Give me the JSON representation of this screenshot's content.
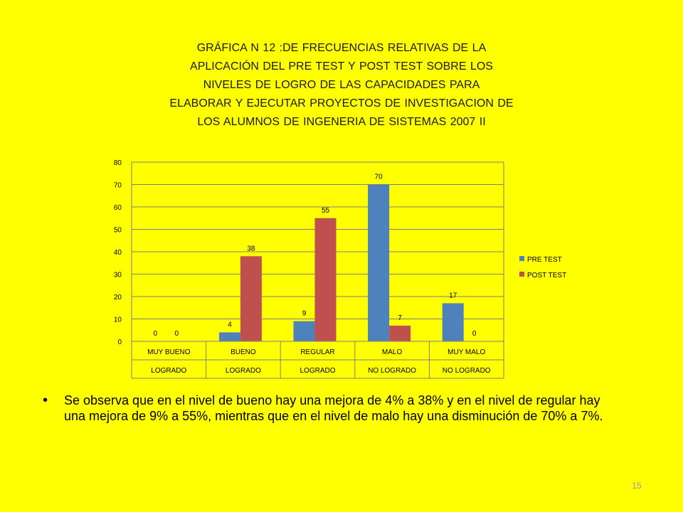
{
  "slide": {
    "page_number": "15",
    "bullet_text": "Se  observa que  en  el nivel de  bueno hay una mejora  de 4% a 38%    y en el nivel de regular hay  una mejora de 9% a 55%, mientras que en el nivel de  malo hay una disminución  de 70% a  7%."
  },
  "chart_data": {
    "type": "bar",
    "title": "GRÁFICA    N  12 :DE FRECUENCIAS RELATIVAS  DE LA\nAPLICACIÓN  DEL PRE TEST  Y POST TEST  SOBRE    LOS\nNIVELES    DE  LOGRO DE LAS CAPACIDADES   PARA\nELABORAR  Y EJECUTAR   PROYECTOS  DE  INVESTIGACION  DE\nLOS ALUMNOS  DE  INGENERIA  DE  SISTEMAS 2007 II",
    "categories": [
      "MUY BUENO",
      "BUENO",
      "REGULAR",
      "MALO",
      "MUY MALO"
    ],
    "subcategories": [
      "LOGRADO",
      "LOGRADO",
      "LOGRADO",
      "NO  LOGRADO",
      "NO LOGRADO"
    ],
    "series": [
      {
        "name": "PRE TEST",
        "values": [
          0,
          4,
          9,
          70,
          17
        ],
        "color": "#4f81bd"
      },
      {
        "name": "POST TEST",
        "values": [
          0,
          38,
          55,
          7,
          0
        ],
        "color": "#c0504d"
      }
    ],
    "ylim": [
      0,
      80
    ],
    "yticks": [
      "0",
      "10",
      "20",
      "30",
      "40",
      "50",
      "60",
      "70",
      "80"
    ],
    "grid": true,
    "legend": "right",
    "data_labels": [
      [
        "0",
        "4",
        "9",
        "70",
        "17"
      ],
      [
        "0",
        "38",
        "55",
        "7",
        "0"
      ]
    ]
  }
}
